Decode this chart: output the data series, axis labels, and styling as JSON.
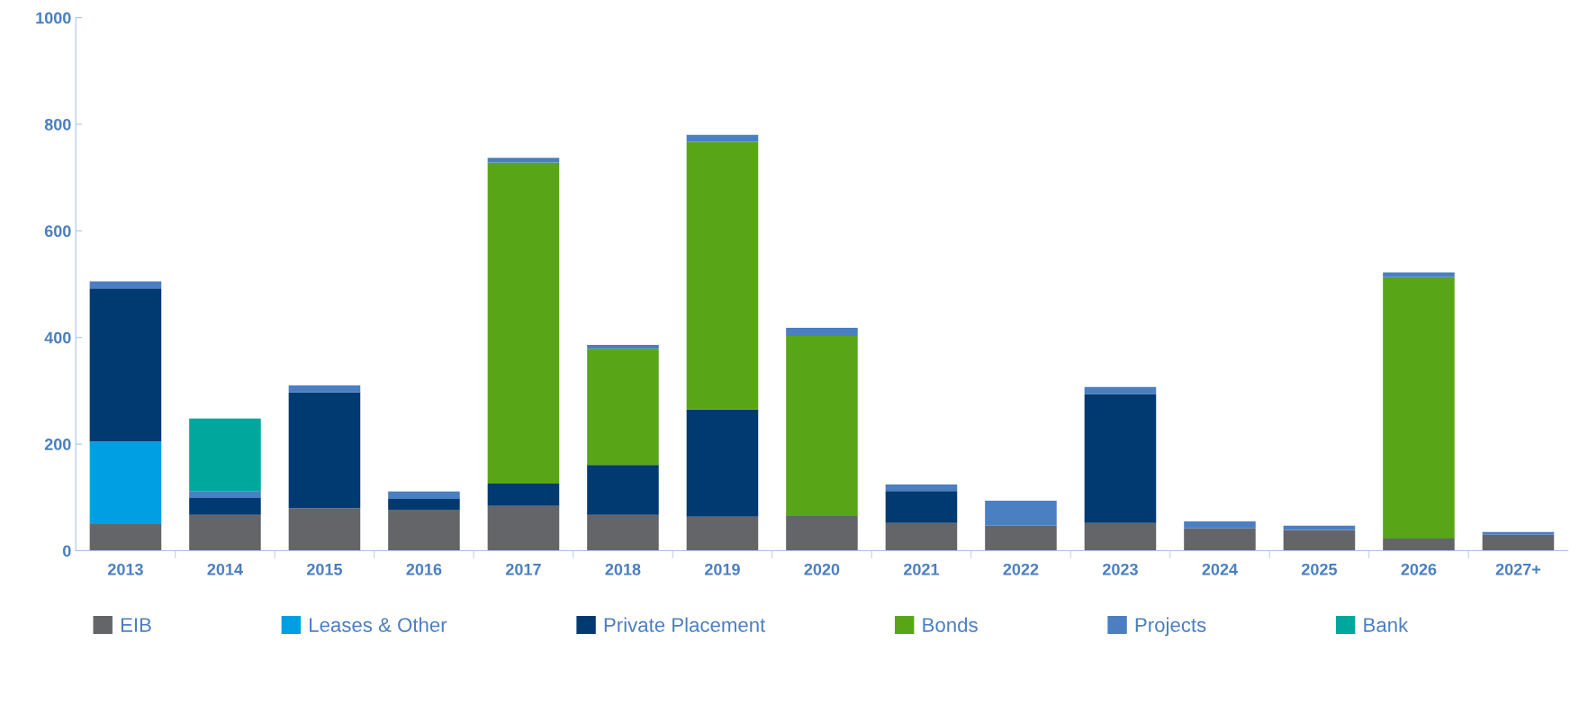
{
  "chart_data": {
    "type": "bar",
    "stacked": true,
    "categories": [
      "2013",
      "2014",
      "2015",
      "2016",
      "2017",
      "2018",
      "2019",
      "2020",
      "2021",
      "2022",
      "2023",
      "2024",
      "2025",
      "2026",
      "2027+"
    ],
    "series": [
      {
        "name": "EIB",
        "color": "#646569",
        "values": [
          50,
          67,
          80,
          77,
          84,
          67,
          64,
          65,
          52,
          47,
          52,
          42,
          39,
          23,
          30
        ]
      },
      {
        "name": "Leases & Other",
        "color": "#009fe3",
        "values": [
          155,
          0,
          0,
          0,
          0,
          0,
          0,
          0,
          0,
          0,
          0,
          0,
          0,
          0,
          0
        ]
      },
      {
        "name": "Private Placement",
        "color": "#003a70",
        "values": [
          287,
          32,
          217,
          20,
          42,
          94,
          201,
          0,
          60,
          0,
          242,
          0,
          0,
          0,
          0
        ]
      },
      {
        "name": "Bonds",
        "color": "#58a618",
        "values": [
          0,
          0,
          0,
          0,
          602,
          218,
          502,
          338,
          0,
          0,
          0,
          0,
          0,
          490,
          0
        ]
      },
      {
        "name": "Projects",
        "color": "#4a7fc1",
        "values": [
          13,
          13,
          13,
          14,
          9,
          7,
          13,
          15,
          12,
          47,
          13,
          13,
          8,
          9,
          5
        ]
      },
      {
        "name": "Bank",
        "color": "#00a79d",
        "values": [
          0,
          136,
          0,
          0,
          0,
          0,
          0,
          0,
          0,
          0,
          0,
          0,
          0,
          0,
          0
        ]
      }
    ],
    "ylim": [
      0,
      1000
    ],
    "yticks": [
      0,
      200,
      400,
      600,
      800,
      1000
    ],
    "grid": false,
    "legend": "bottom"
  }
}
